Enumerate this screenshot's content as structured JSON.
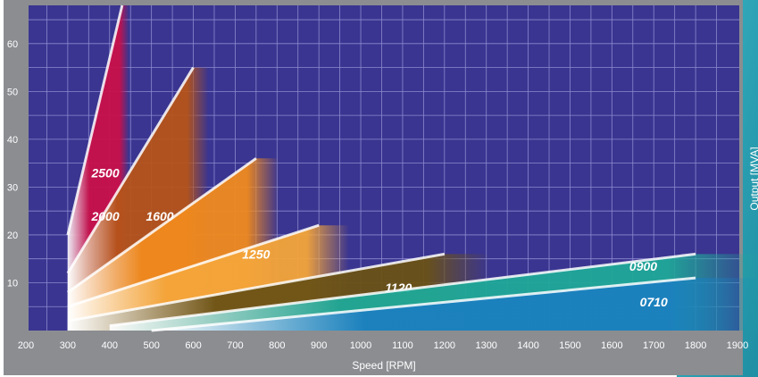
{
  "chart_data": {
    "type": "area",
    "title": "",
    "xlabel": "Speed [RPM]",
    "ylabel": "Output [MVA]",
    "xlim": [
      200,
      1900
    ],
    "ylim": [
      0,
      68
    ],
    "x_ticks": [
      200,
      300,
      400,
      500,
      600,
      700,
      800,
      900,
      1000,
      1100,
      1200,
      1300,
      1400,
      1500,
      1600,
      1700,
      1800,
      1900
    ],
    "x_tick_labels": [
      "200",
      "300",
      "400",
      "500",
      "600",
      "700",
      "800",
      "900",
      "1000",
      "1100",
      "1200",
      "1300",
      "1400",
      "1500",
      "1600",
      "1700",
      "1800",
      "1900"
    ],
    "y_ticks": [
      10,
      20,
      30,
      40,
      50,
      60
    ],
    "y_tick_labels": [
      "10",
      "20",
      "30",
      "40",
      "50",
      "60"
    ],
    "grid": true,
    "series": [
      {
        "name": "2500",
        "color": "#c8104a",
        "x": [
          300,
          430
        ],
        "y": [
          20,
          68
        ]
      },
      {
        "name": "2000",
        "color": "#b5541a",
        "x": [
          300,
          600
        ],
        "y": [
          12,
          55
        ]
      },
      {
        "name": "1600",
        "color": "#f08a1e",
        "x": [
          300,
          750
        ],
        "y": [
          8,
          36
        ]
      },
      {
        "name": "1250",
        "color": "#f4a53a",
        "x": [
          300,
          900
        ],
        "y": [
          5,
          22
        ]
      },
      {
        "name": "1120",
        "color": "#6b5216",
        "x": [
          300,
          1200
        ],
        "y": [
          2,
          16
        ]
      },
      {
        "name": "0900",
        "color": "#1fa898",
        "x": [
          400,
          1800
        ],
        "y": [
          1,
          16
        ]
      },
      {
        "name": "0710",
        "color": "#1b7fbf",
        "x": [
          500,
          1800
        ],
        "y": [
          0,
          11
        ]
      }
    ]
  }
}
